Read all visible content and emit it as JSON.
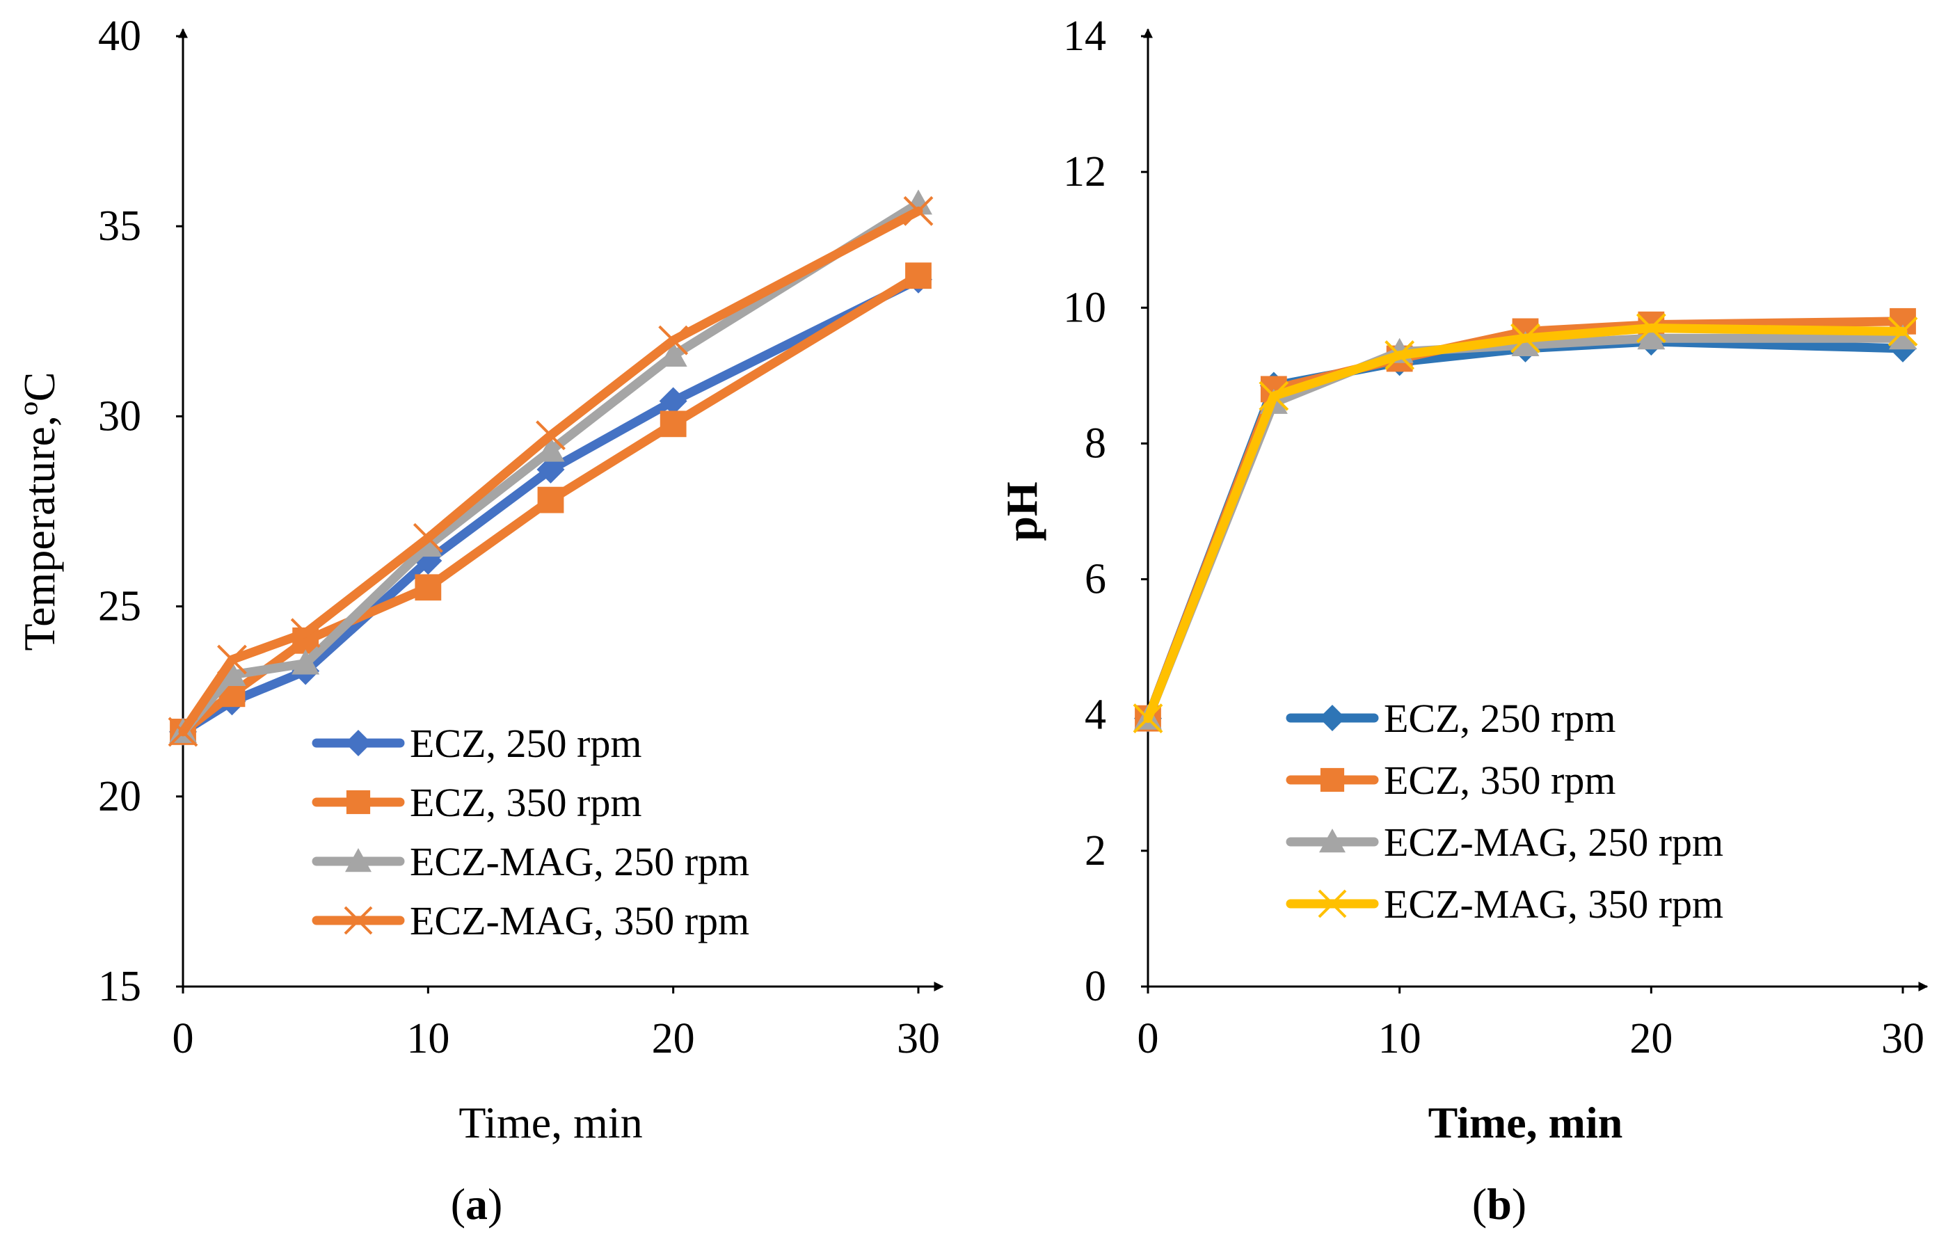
{
  "chart_data": [
    {
      "type": "line",
      "panel_label_open": "(",
      "panel_label_letter": "a",
      "panel_label_close": ")",
      "xlabel": "Time, min",
      "ylabel": "Temperature,ºC",
      "xlim": [
        0,
        30
      ],
      "ylim": [
        15,
        40
      ],
      "xticks": [
        0,
        10,
        20,
        30
      ],
      "xtick_labels": [
        "0",
        "10",
        "20",
        "30"
      ],
      "yticks": [
        15,
        20,
        25,
        30,
        35,
        40
      ],
      "ytick_labels": [
        "15",
        "20",
        "25",
        "30",
        "35",
        "40"
      ],
      "grid": false,
      "legend_position": "lower-right",
      "series": [
        {
          "name": "ECZ, 250 rpm",
          "color": "#4472C4",
          "marker": "diamond",
          "x": [
            0,
            2,
            5,
            10,
            15,
            20,
            30
          ],
          "y": [
            21.7,
            22.5,
            23.3,
            26.2,
            28.6,
            30.4,
            33.6
          ]
        },
        {
          "name": "ECZ, 350 rpm",
          "color": "#ED7D31",
          "marker": "square",
          "x": [
            0,
            2,
            5,
            10,
            15,
            20,
            30
          ],
          "y": [
            21.7,
            22.7,
            24.1,
            25.5,
            27.8,
            29.8,
            33.7
          ]
        },
        {
          "name": "ECZ-MAG, 250 rpm",
          "color": "#A5A5A5",
          "marker": "triangle",
          "x": [
            0,
            2,
            5,
            10,
            15,
            20,
            30
          ],
          "y": [
            21.7,
            23.2,
            23.5,
            26.6,
            29.1,
            31.6,
            35.6
          ]
        },
        {
          "name": "ECZ-MAG, 350 rpm",
          "color": "#ED7D31",
          "marker": "x",
          "x": [
            0,
            2,
            5,
            10,
            15,
            20,
            30
          ],
          "y": [
            21.7,
            23.6,
            24.3,
            26.8,
            29.5,
            32.0,
            35.4
          ]
        }
      ]
    },
    {
      "type": "line",
      "panel_label_open": "(",
      "panel_label_letter": "b",
      "panel_label_close": ")",
      "xlabel": "Time, min",
      "ylabel": "pH",
      "xlim": [
        0,
        30
      ],
      "ylim": [
        0,
        14
      ],
      "xticks": [
        0,
        10,
        20,
        30
      ],
      "xtick_labels": [
        "0",
        "10",
        "20",
        "30"
      ],
      "yticks": [
        0,
        2,
        4,
        6,
        8,
        10,
        12,
        14
      ],
      "ytick_labels": [
        "0",
        "2",
        "4",
        "6",
        "8",
        "10",
        "12",
        "14"
      ],
      "grid": false,
      "legend_position": "lower-right",
      "series": [
        {
          "name": "ECZ, 250 rpm",
          "color": "#2E75B6",
          "marker": "diamond",
          "x": [
            0,
            5,
            10,
            15,
            20,
            30
          ],
          "y": [
            3.95,
            8.85,
            9.2,
            9.4,
            9.5,
            9.4
          ]
        },
        {
          "name": "ECZ, 350 rpm",
          "color": "#ED7D31",
          "marker": "square",
          "x": [
            0,
            5,
            10,
            15,
            20,
            30
          ],
          "y": [
            3.95,
            8.8,
            9.25,
            9.65,
            9.75,
            9.8
          ]
        },
        {
          "name": "ECZ-MAG, 250 rpm",
          "color": "#A5A5A5",
          "marker": "triangle",
          "x": [
            0,
            5,
            10,
            15,
            20,
            30
          ],
          "y": [
            3.95,
            8.6,
            9.35,
            9.45,
            9.55,
            9.55
          ]
        },
        {
          "name": "ECZ-MAG, 350 rpm",
          "color": "#FFC000",
          "marker": "x",
          "x": [
            0,
            5,
            10,
            15,
            20,
            30
          ],
          "y": [
            3.95,
            8.7,
            9.3,
            9.55,
            9.7,
            9.65
          ]
        }
      ]
    }
  ]
}
